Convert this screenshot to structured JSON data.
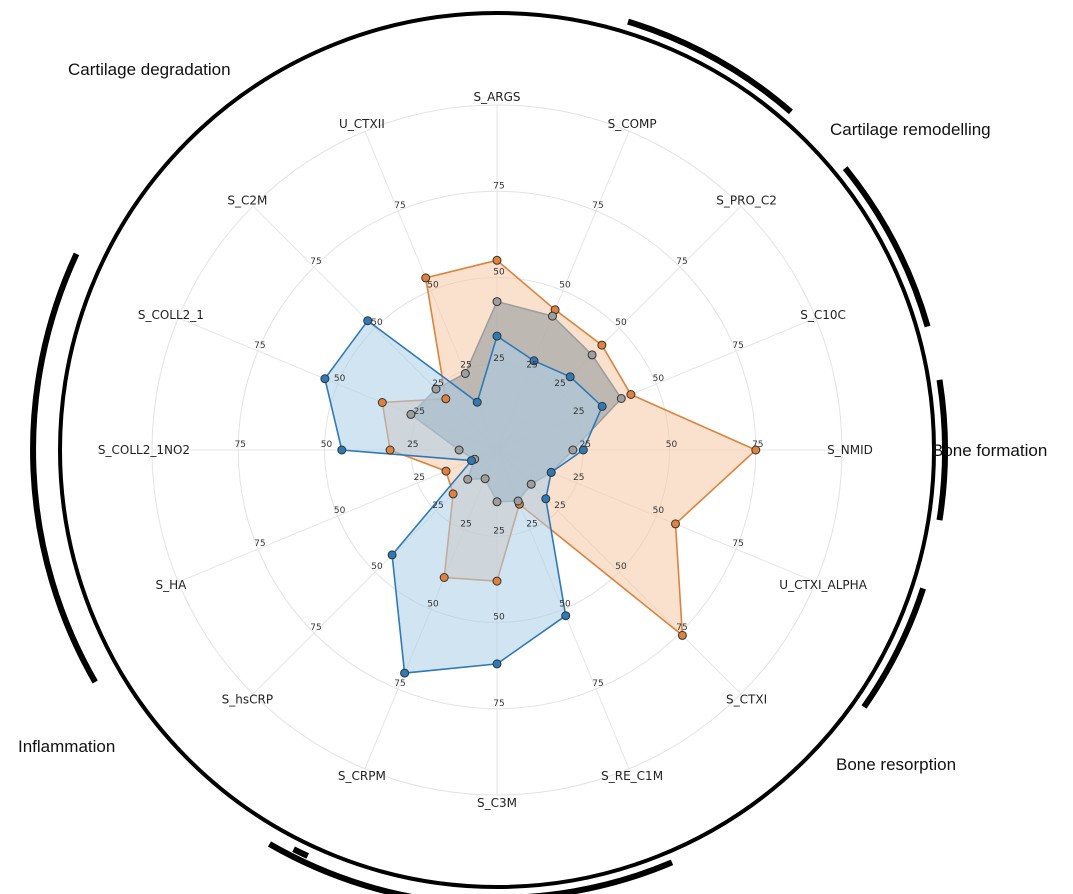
{
  "chart_data": {
    "type": "radar",
    "categories": [
      "S_ARGS",
      "S_COMP",
      "S_PRO_C2",
      "S_C10C",
      "S_NMID",
      "U_CTXI_ALPHA",
      "S_CTXI",
      "S_RE_C1M",
      "S_C3M",
      "S_CRPM",
      "S_hsCRP",
      "S_HA",
      "S_COLL2_1NO2",
      "S_COLL2_1",
      "S_C2M",
      "U_CTXII"
    ],
    "r_ticks": [
      25,
      50,
      75
    ],
    "rlim": [
      0,
      100
    ],
    "grid": true,
    "series": [
      {
        "color": "#e0823c",
        "fill": "#f5c9a6",
        "values": [
          55,
          44,
          43,
          42,
          75,
          56,
          76,
          17,
          38,
          40,
          18,
          16,
          31,
          36,
          21,
          54
        ]
      },
      {
        "color": "#9e9e9e",
        "fill": "#a9a9a9",
        "values": [
          43,
          42,
          39,
          39,
          22,
          17,
          14,
          16,
          15,
          9,
          12,
          7,
          11,
          27,
          25,
          24
        ]
      },
      {
        "color": "#2e7ab8",
        "fill": "#a9cde8",
        "values": [
          33,
          28,
          30,
          33,
          25,
          17,
          20,
          52,
          62,
          70,
          43,
          8,
          45,
          54,
          53,
          15
        ]
      }
    ],
    "groups": [
      {
        "label": "Cartilage degradation"
      },
      {
        "label": "Cartilage remodelling"
      },
      {
        "label": "Bone formation"
      },
      {
        "label": "Bone resorption"
      },
      {
        "label": "Inflammation"
      }
    ]
  }
}
